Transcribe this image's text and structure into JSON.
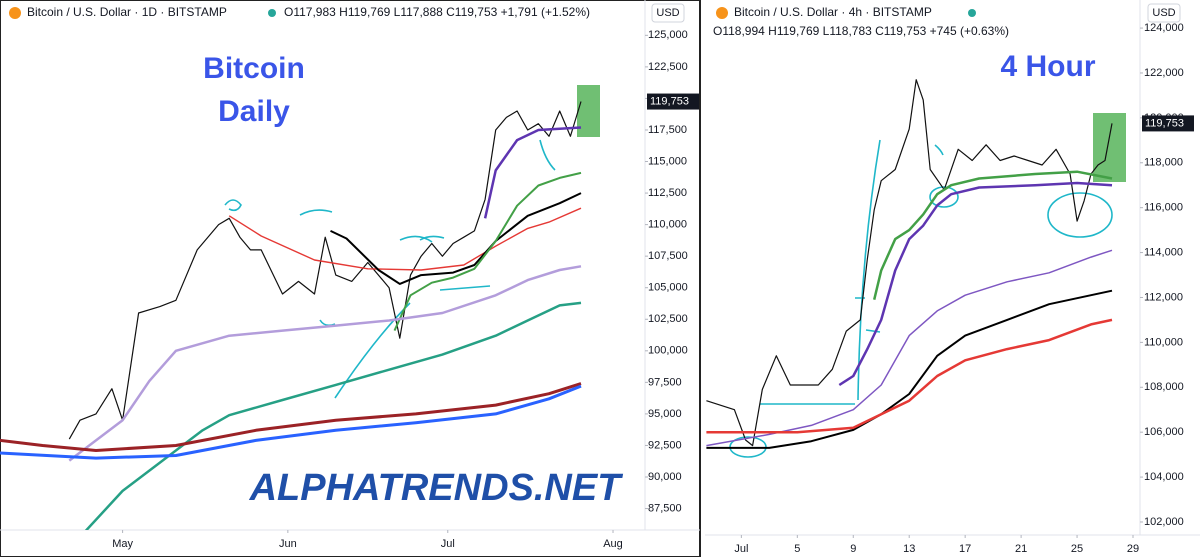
{
  "chart_data": [
    {
      "type": "line",
      "title": "Bitcoin / U.S. Dollar · 1D · BITSTAMP",
      "ohlc": "O117,983  H119,769  L117,888  C119,753  +1,791 (+1.52%)",
      "currency": "USD",
      "last_label": "119,753",
      "annotations": [
        "Bitcoin",
        "Daily"
      ],
      "watermark": "ALPHATRENDS.NET",
      "xlim": [
        7,
        128
      ],
      "xticks": [
        {
          "value": 30,
          "label": "May"
        },
        {
          "value": 61,
          "label": "Jun"
        },
        {
          "value": 91,
          "label": "Jul"
        },
        {
          "value": 122,
          "label": "Aug"
        }
      ],
      "ylim": [
        85800,
        127800
      ],
      "yticks": [
        {
          "value": 87500,
          "label": "87,500"
        },
        {
          "value": 90000,
          "label": "90,000"
        },
        {
          "value": 92500,
          "label": "92,500"
        },
        {
          "value": 95000,
          "label": "95,000"
        },
        {
          "value": 97500,
          "label": "97,500"
        },
        {
          "value": 100000,
          "label": "100,000"
        },
        {
          "value": 102500,
          "label": "102,500"
        },
        {
          "value": 105000,
          "label": "105,000"
        },
        {
          "value": 107500,
          "label": "107,500"
        },
        {
          "value": 110000,
          "label": "110,000"
        },
        {
          "value": 112500,
          "label": "112,500"
        },
        {
          "value": 115000,
          "label": "115,000"
        },
        {
          "value": 117500,
          "label": "117,500"
        },
        {
          "value": 120000,
          "label": "120,000"
        },
        {
          "value": 122500,
          "label": "122,500"
        },
        {
          "value": 125000,
          "label": "125,000"
        }
      ],
      "series": [
        {
          "color": "#111111",
          "width": 1.2,
          "x": [
            20,
            22,
            25,
            28,
            30,
            33,
            37,
            40,
            44,
            48,
            50,
            52,
            54,
            56,
            60,
            63,
            66,
            68,
            70,
            73,
            76,
            80,
            82,
            84,
            86,
            88,
            90,
            92,
            94,
            96,
            98,
            100,
            102,
            104,
            106,
            108,
            110,
            112,
            114,
            116
          ],
          "values": [
            93000,
            94500,
            95000,
            97000,
            94500,
            103000,
            103500,
            104000,
            108000,
            110000,
            110500,
            109000,
            108000,
            108000,
            104500,
            105500,
            104500,
            109000,
            106000,
            105500,
            107000,
            105000,
            101000,
            106000,
            107500,
            108500,
            107500,
            108500,
            109000,
            109500,
            112000,
            117500,
            118500,
            119000,
            117500,
            118000,
            117000,
            119000,
            117000,
            119753
          ]
        },
        {
          "color": "#e53935",
          "width": 1.4,
          "x": [
            50,
            56,
            66,
            76,
            86,
            94,
            100,
            106,
            110,
            116
          ],
          "values": [
            110700,
            109100,
            107200,
            106500,
            106400,
            106800,
            108300,
            109700,
            110200,
            111300
          ]
        },
        {
          "color": "#000000",
          "width": 2,
          "x": [
            69,
            72,
            78,
            82,
            86,
            92,
            96,
            100,
            106,
            112,
            116
          ],
          "values": [
            109500,
            108900,
            106400,
            105300,
            106000,
            106200,
            106800,
            108700,
            110700,
            111700,
            112500
          ]
        },
        {
          "color": "#43a047",
          "width": 2,
          "x": [
            81,
            84,
            88,
            92,
            96,
            100,
            104,
            108,
            112,
            116
          ],
          "values": [
            101600,
            104400,
            105400,
            105800,
            106500,
            108700,
            111500,
            113100,
            113700,
            114100
          ]
        },
        {
          "color": "#5e35b1",
          "width": 2.5,
          "x": [
            98,
            100,
            104,
            108,
            116
          ],
          "values": [
            110500,
            114300,
            116700,
            117500,
            117700
          ]
        },
        {
          "color": "#b39ddb",
          "width": 2.5,
          "x": [
            20,
            25,
            30,
            35,
            40,
            50,
            60,
            70,
            80,
            90,
            100,
            106,
            112,
            116
          ],
          "values": [
            91300,
            92900,
            94500,
            97600,
            100000,
            101200,
            101600,
            102000,
            102400,
            103000,
            104400,
            105600,
            106400,
            106700
          ]
        },
        {
          "color": "#26a085",
          "width": 2.5,
          "x": [
            23,
            30,
            40,
            45,
            50,
            60,
            70,
            80,
            90,
            100,
            106,
            112,
            116
          ],
          "values": [
            85700,
            88900,
            92100,
            93700,
            94900,
            96100,
            97300,
            98500,
            99700,
            101200,
            102400,
            103600,
            103800
          ]
        },
        {
          "color": "#9b2226",
          "width": 3,
          "x": [
            7,
            15,
            25,
            40,
            55,
            70,
            85,
            100,
            110,
            116
          ],
          "values": [
            92900,
            92500,
            92100,
            92500,
            93700,
            94500,
            95000,
            95700,
            96600,
            97400
          ]
        },
        {
          "color": "#2962ff",
          "width": 3,
          "x": [
            7,
            25,
            40,
            55,
            70,
            85,
            100,
            110,
            116
          ],
          "values": [
            91900,
            91500,
            91700,
            92900,
            93700,
            94300,
            95000,
            96200,
            97200
          ]
        }
      ]
    },
    {
      "type": "line",
      "title": "Bitcoin / U.S. Dollar · 4h · BITSTAMP",
      "ohlc": "O118,994  H119,769  L118,783  C119,753  +745 (+0.63%)",
      "currency": "USD",
      "last_label": "119,753",
      "annotations": [
        "4 Hour"
      ],
      "xlim": [
        -1.6,
        29.5
      ],
      "xticks": [
        {
          "value": 1,
          "label": "Jul"
        },
        5,
        9,
        13,
        17,
        21,
        25,
        29
      ],
      "ylim": [
        101420,
        125250
      ],
      "yticks": [
        {
          "value": 102000,
          "label": "102,000"
        },
        {
          "value": 104000,
          "label": "104,000"
        },
        {
          "value": 106000,
          "label": "106,000"
        },
        {
          "value": 108000,
          "label": "108,000"
        },
        {
          "value": 110000,
          "label": "110,000"
        },
        {
          "value": 112000,
          "label": "112,000"
        },
        {
          "value": 114000,
          "label": "114,000"
        },
        {
          "value": 116000,
          "label": "116,000"
        },
        {
          "value": 118000,
          "label": "118,000"
        },
        {
          "value": 120000,
          "label": "120,000"
        },
        {
          "value": 122000,
          "label": "122,000"
        },
        {
          "value": 124000,
          "label": "124,000"
        }
      ],
      "series": [
        {
          "color": "#111111",
          "width": 1.2,
          "x": [
            -1.5,
            0.5,
            1.3,
            1.8,
            2.5,
            3.5,
            4.5,
            5.5,
            6.5,
            7.5,
            8.5,
            9.5,
            10,
            10.5,
            11,
            12,
            13,
            13.5,
            14,
            14.5,
            15.5,
            16.5,
            17.5,
            18.5,
            19.5,
            20.5,
            21.5,
            22.5,
            23.5,
            24.5,
            25,
            25.5,
            26,
            26.5,
            27,
            27.5
          ],
          "values": [
            107400,
            107000,
            105650,
            105400,
            107900,
            109400,
            108100,
            108100,
            108100,
            108800,
            110500,
            111000,
            113700,
            115900,
            117200,
            117700,
            119500,
            121700,
            120800,
            117700,
            116800,
            118600,
            118100,
            118800,
            118100,
            118300,
            118100,
            117900,
            118600,
            117500,
            115400,
            116300,
            117500,
            117900,
            118100,
            119753
          ]
        },
        {
          "color": "#43a047",
          "width": 2.5,
          "x": [
            10.5,
            11,
            12,
            13,
            14,
            15,
            16,
            18,
            22,
            25,
            27.5
          ],
          "values": [
            111900,
            113200,
            114600,
            115000,
            115700,
            116600,
            117000,
            117300,
            117500,
            117600,
            117300
          ]
        },
        {
          "color": "#5e35b1",
          "width": 2.5,
          "x": [
            8,
            9,
            10,
            11,
            12,
            13,
            14,
            15,
            16,
            18,
            22,
            25,
            27.5
          ],
          "values": [
            108100,
            108500,
            109700,
            111000,
            113200,
            114600,
            115200,
            116100,
            116600,
            116900,
            117000,
            117100,
            117000
          ]
        },
        {
          "color": "#7e57c2",
          "width": 1.5,
          "x": [
            -1.5,
            3,
            6,
            9,
            11,
            13,
            15,
            17,
            20,
            23,
            26,
            27.5
          ],
          "values": [
            105400,
            105900,
            106300,
            107000,
            108100,
            110300,
            111400,
            112100,
            112700,
            113100,
            113800,
            114100
          ]
        },
        {
          "color": "#000000",
          "width": 2,
          "x": [
            -1.5,
            3,
            6,
            9,
            11,
            13,
            15,
            17,
            20,
            23,
            26,
            27.5
          ],
          "values": [
            105300,
            105300,
            105600,
            106100,
            106800,
            107700,
            109400,
            110300,
            111000,
            111700,
            112100,
            112300
          ]
        },
        {
          "color": "#e53935",
          "width": 2.5,
          "x": [
            -1.5,
            5,
            9,
            11,
            13,
            15,
            17,
            20,
            23,
            26,
            27.5
          ],
          "values": [
            106000,
            106000,
            106200,
            106800,
            107400,
            108500,
            109200,
            109700,
            110100,
            110800,
            111000
          ]
        }
      ]
    }
  ]
}
